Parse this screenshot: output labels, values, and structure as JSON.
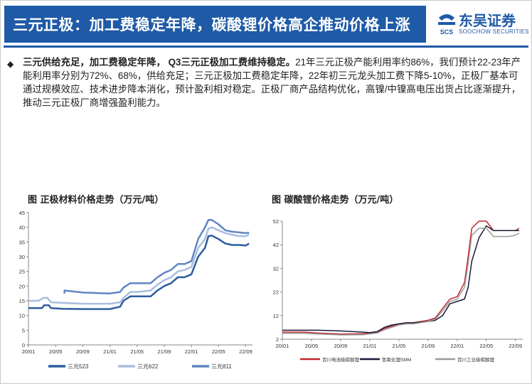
{
  "header": {
    "title": "三元正极：加工费稳定年降，碳酸锂价格高企推动价格上涨",
    "logo_cn": "东吴证券",
    "logo_en": "SOOCHOW SECURITIES",
    "logo_mark_text": "SCS"
  },
  "bullet": {
    "icon": "diamond-bullet-icon",
    "lead": "三元供给充足，加工费稳定年降，",
    "lead2": "Q3三元正极加工费维持稳定。",
    "body": "21年三元正极产能利用率约86%，我们预计22-23年产能利用率分别为72%、68%，供给充足；三元正极加工费稳定年降，22年初三元龙头加工费下降5-10%，正极厂基本可通过规模效应、技术进步降本消化，预计盈利相对稳定。正极厂商产品结构优化，高镍/中镍高电压出货占比逐渐提升，推动三元正极厂商增强盈利能力。"
  },
  "colors": {
    "brand": "#1f5aa6"
  },
  "chart_data": [
    {
      "type": "line",
      "title": "图  正极材料价格走势（万元/吨）",
      "ylim": [
        0,
        45
      ],
      "yticks": [
        0,
        5,
        10,
        15,
        20,
        25,
        30,
        35,
        40,
        45
      ],
      "xticks": [
        "20/01",
        "20/05",
        "20/09",
        "21/01",
        "21/05",
        "21/09",
        "22/01",
        "22/05",
        "22/09"
      ],
      "xlim": [
        0,
        33
      ],
      "grid": false,
      "legend_position": "bottom",
      "series": [
        {
          "name": "三元523",
          "color": "#2e5c9e",
          "x": [
            0,
            2,
            2.3,
            3,
            3.3,
            5,
            8,
            12,
            13.5,
            14,
            15,
            16,
            18,
            19,
            20,
            21,
            22,
            23,
            24,
            25,
            26,
            26.5,
            27,
            28,
            29,
            30,
            31,
            32,
            32.5
          ],
          "y": [
            12.5,
            12.5,
            13.5,
            13.5,
            12.5,
            12.3,
            12.2,
            12.2,
            13,
            15,
            16.5,
            16.5,
            16.5,
            18.5,
            20,
            21,
            23,
            23,
            24,
            30,
            33,
            37,
            37.2,
            36,
            34.5,
            34,
            34,
            33.8,
            34.5
          ]
        },
        {
          "name": "三元622",
          "color": "#a9bde0",
          "x": [
            0,
            1.5,
            2.2,
            2.8,
            3.3,
            5,
            8,
            12,
            13.5,
            14,
            15,
            16,
            18,
            19,
            20,
            21,
            22,
            23,
            24,
            25,
            26,
            26.5,
            27,
            28,
            29,
            30,
            31,
            32,
            32.5
          ],
          "y": [
            15,
            15,
            16,
            16,
            14.5,
            14.3,
            14,
            14,
            14.5,
            16,
            18,
            18,
            18.5,
            20.5,
            22,
            23,
            25,
            25.5,
            26.5,
            33,
            36,
            39.5,
            40,
            39,
            38,
            37.5,
            37,
            37,
            37.5
          ]
        },
        {
          "name": "三元811",
          "color": "#5f86c4",
          "x": [
            5.3,
            5.3,
            8,
            12,
            13.5,
            14,
            15,
            16,
            18,
            19,
            20,
            21,
            22,
            23,
            24,
            25,
            26,
            26.5,
            27,
            28,
            29,
            30,
            31,
            32,
            32.5
          ],
          "y": [
            17.5,
            18.5,
            17.8,
            17.5,
            18,
            19.5,
            21,
            21,
            21,
            23,
            24.5,
            25.5,
            27.5,
            27.5,
            28.5,
            36,
            40,
            42.5,
            42.5,
            41,
            39,
            38.5,
            38.3,
            38,
            38.2
          ]
        }
      ]
    },
    {
      "type": "line",
      "title": "图  碳酸锂价格走势（万元/吨）",
      "ylim": [
        2,
        52
      ],
      "yticks": [
        2,
        12,
        22,
        32,
        42,
        52
      ],
      "xticks": [
        "20/01",
        "20/05",
        "20/09",
        "21/01",
        "21/05",
        "21/09",
        "22/01",
        "22/05",
        "22/09"
      ],
      "xlim": [
        0,
        33
      ],
      "grid": false,
      "legend_position": "bottom",
      "series": [
        {
          "name": "百川电池级碳酸锂",
          "color": "#c0282d",
          "x": [
            0,
            3,
            5,
            8,
            11,
            13,
            14,
            15,
            16,
            17,
            18,
            19,
            20,
            21,
            22,
            23,
            24,
            25,
            25.5,
            26,
            27,
            28,
            29,
            30,
            31,
            32,
            32.5
          ],
          "y": [
            5,
            5,
            4.6,
            4.2,
            4.3,
            5,
            6.5,
            7.5,
            8.5,
            9,
            9,
            9.5,
            10,
            11,
            15,
            19,
            20,
            26,
            37,
            49,
            52,
            52,
            48,
            48,
            48,
            48,
            49
          ]
        },
        {
          "name": "氢氧化锂SMM",
          "color": "#1a1a3a",
          "x": [
            0,
            3,
            5,
            8,
            11,
            12,
            13,
            14,
            15,
            16,
            17,
            18,
            19,
            20,
            21,
            22,
            23,
            24,
            25,
            25.5,
            26,
            27,
            28,
            29,
            30,
            31,
            32,
            32.5
          ],
          "y": [
            5.8,
            5.8,
            5.8,
            5.5,
            5,
            4.8,
            5.2,
            7,
            8,
            8.5,
            8.8,
            9,
            9.2,
            9.5,
            10,
            12,
            17,
            18,
            19,
            24,
            35,
            45,
            50,
            48,
            48,
            48,
            48,
            48
          ]
        },
        {
          "name": "百川工业级碳酸锂",
          "color": "#9a9a9a",
          "x": [
            0,
            3,
            5,
            8,
            11,
            13,
            14,
            15,
            16,
            17,
            18,
            19,
            20,
            21,
            22,
            23,
            24,
            25,
            25.5,
            26,
            27,
            28,
            29,
            30,
            31,
            32,
            32.5
          ],
          "y": [
            4.5,
            4.5,
            4.2,
            3.8,
            3.9,
            4.6,
            6,
            7,
            8,
            8.5,
            8.5,
            9,
            9.5,
            10.5,
            14,
            18,
            19,
            24,
            34,
            46,
            49,
            49,
            45.5,
            45.5,
            45.5,
            46,
            47
          ]
        }
      ]
    }
  ]
}
